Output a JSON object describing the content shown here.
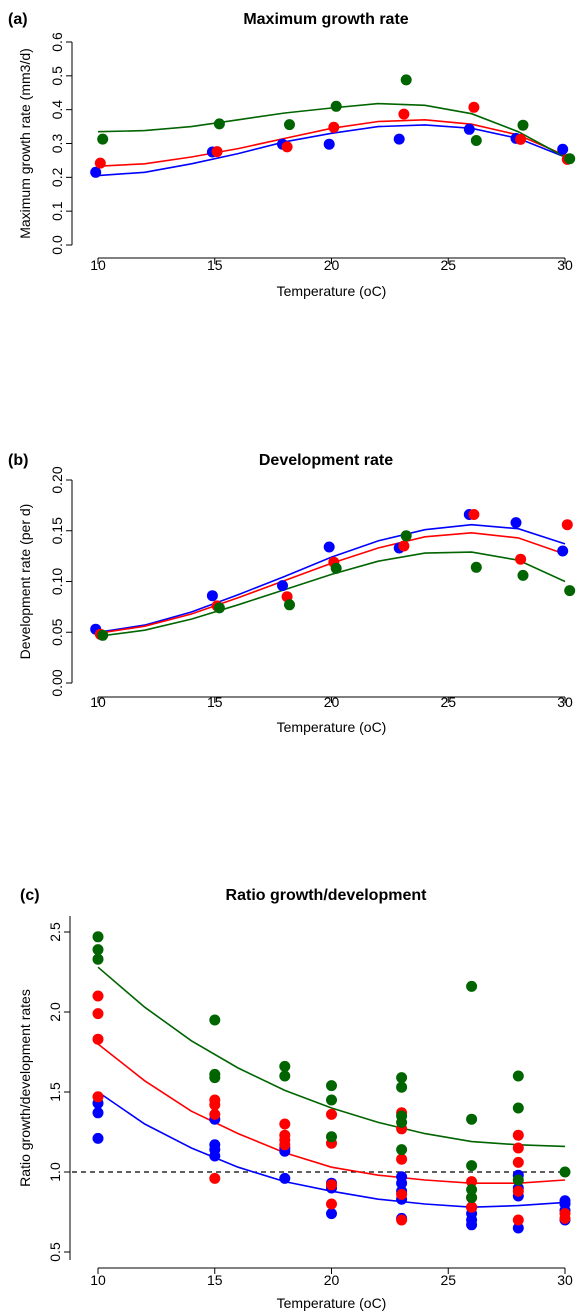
{
  "colors": {
    "blue": "#0000ff",
    "red": "#ff0000",
    "green": "#006400",
    "axis": "#000000"
  },
  "chart_data": [
    {
      "panel": "(a)",
      "type": "scatter",
      "title": "Maximum growth rate",
      "xlabel": "Temperature (oC)",
      "ylabel": "Maximum growth rate (mm3/d)",
      "xlim": [
        10,
        30
      ],
      "ylim": [
        0,
        0.6
      ],
      "xticks": [
        "10",
        "15",
        "20",
        "25",
        "30"
      ],
      "yticks": [
        "0.0",
        "0.1",
        "0.2",
        "0.3",
        "0.4",
        "0.5",
        "0.6"
      ],
      "series": [
        {
          "color": "blue",
          "points": [
            [
              9.9,
              0.215
            ],
            [
              14.9,
              0.275
            ],
            [
              17.9,
              0.298
            ],
            [
              19.9,
              0.298
            ],
            [
              22.9,
              0.313
            ],
            [
              25.9,
              0.342
            ],
            [
              27.9,
              0.315
            ],
            [
              29.9,
              0.283
            ]
          ],
          "curve": [
            [
              10,
              0.205
            ],
            [
              12,
              0.215
            ],
            [
              14,
              0.24
            ],
            [
              16,
              0.27
            ],
            [
              18,
              0.305
            ],
            [
              20,
              0.33
            ],
            [
              22,
              0.35
            ],
            [
              24,
              0.355
            ],
            [
              26,
              0.345
            ],
            [
              28,
              0.315
            ],
            [
              30,
              0.26
            ]
          ]
        },
        {
          "color": "red",
          "points": [
            [
              10.1,
              0.242
            ],
            [
              15.1,
              0.276
            ],
            [
              18.1,
              0.29
            ],
            [
              20.1,
              0.348
            ],
            [
              23.1,
              0.387
            ],
            [
              26.1,
              0.407
            ],
            [
              28.1,
              0.312
            ],
            [
              30.1,
              0.253
            ]
          ],
          "curve": [
            [
              10,
              0.233
            ],
            [
              12,
              0.24
            ],
            [
              14,
              0.26
            ],
            [
              16,
              0.285
            ],
            [
              18,
              0.315
            ],
            [
              20,
              0.345
            ],
            [
              22,
              0.365
            ],
            [
              24,
              0.37
            ],
            [
              26,
              0.357
            ],
            [
              28,
              0.325
            ],
            [
              30,
              0.265
            ]
          ]
        },
        {
          "color": "green",
          "points": [
            [
              10.2,
              0.313
            ],
            [
              15.2,
              0.358
            ],
            [
              18.2,
              0.356
            ],
            [
              20.2,
              0.41
            ],
            [
              23.2,
              0.488
            ],
            [
              26.2,
              0.309
            ],
            [
              28.2,
              0.354
            ],
            [
              30.2,
              0.255
            ]
          ],
          "curve": [
            [
              10,
              0.335
            ],
            [
              12,
              0.338
            ],
            [
              14,
              0.35
            ],
            [
              16,
              0.37
            ],
            [
              18,
              0.39
            ],
            [
              20,
              0.405
            ],
            [
              22,
              0.418
            ],
            [
              24,
              0.413
            ],
            [
              26,
              0.388
            ],
            [
              28,
              0.335
            ],
            [
              30,
              0.26
            ]
          ]
        }
      ]
    },
    {
      "panel": "(b)",
      "type": "scatter",
      "title": "Development rate",
      "xlabel": "Temperature (oC)",
      "ylabel": "Development rate (per d)",
      "xlim": [
        10,
        30
      ],
      "ylim": [
        0,
        0.2
      ],
      "xticks": [
        "10",
        "15",
        "20",
        "25",
        "30"
      ],
      "yticks": [
        "0.00",
        "0.05",
        "0.10",
        "0.15",
        "0.20"
      ],
      "series": [
        {
          "color": "blue",
          "points": [
            [
              9.9,
              0.053
            ],
            [
              14.9,
              0.086
            ],
            [
              17.9,
              0.096
            ],
            [
              19.9,
              0.134
            ],
            [
              22.9,
              0.133
            ],
            [
              25.9,
              0.166
            ],
            [
              27.9,
              0.158
            ],
            [
              29.9,
              0.13
            ]
          ],
          "curve": [
            [
              10,
              0.05
            ],
            [
              12,
              0.057
            ],
            [
              14,
              0.07
            ],
            [
              16,
              0.087
            ],
            [
              18,
              0.105
            ],
            [
              20,
              0.124
            ],
            [
              22,
              0.14
            ],
            [
              24,
              0.151
            ],
            [
              26,
              0.156
            ],
            [
              28,
              0.152
            ],
            [
              30,
              0.137
            ]
          ]
        },
        {
          "color": "red",
          "points": [
            [
              10.1,
              0.048
            ],
            [
              15.1,
              0.076
            ],
            [
              18.1,
              0.085
            ],
            [
              20.1,
              0.119
            ],
            [
              23.1,
              0.135
            ],
            [
              26.1,
              0.166
            ],
            [
              28.1,
              0.122
            ],
            [
              30.1,
              0.156
            ]
          ],
          "curve": [
            [
              10,
              0.049
            ],
            [
              12,
              0.056
            ],
            [
              14,
              0.068
            ],
            [
              16,
              0.084
            ],
            [
              18,
              0.101
            ],
            [
              20,
              0.118
            ],
            [
              22,
              0.133
            ],
            [
              24,
              0.144
            ],
            [
              26,
              0.148
            ],
            [
              28,
              0.143
            ],
            [
              30,
              0.127
            ]
          ]
        },
        {
          "color": "green",
          "points": [
            [
              10.2,
              0.047
            ],
            [
              15.2,
              0.074
            ],
            [
              18.2,
              0.077
            ],
            [
              20.2,
              0.113
            ],
            [
              23.2,
              0.145
            ],
            [
              26.2,
              0.114
            ],
            [
              28.2,
              0.106
            ],
            [
              30.2,
              0.091
            ]
          ],
          "curve": [
            [
              10,
              0.046
            ],
            [
              12,
              0.052
            ],
            [
              14,
              0.063
            ],
            [
              16,
              0.077
            ],
            [
              18,
              0.092
            ],
            [
              20,
              0.107
            ],
            [
              22,
              0.12
            ],
            [
              24,
              0.128
            ],
            [
              26,
              0.129
            ],
            [
              28,
              0.121
            ],
            [
              30,
              0.1
            ]
          ]
        }
      ]
    },
    {
      "panel": "(c)",
      "type": "scatter",
      "title": "Ratio growth/development",
      "xlabel": "Temperature (oC)",
      "ylabel": "Ratio growth/development rates",
      "xlim": [
        10,
        30
      ],
      "ylim": [
        0.45,
        2.6
      ],
      "xticks": [
        "10",
        "15",
        "20",
        "25",
        "30"
      ],
      "yticks": [
        "0.5",
        "1.0",
        "1.5",
        "2.0",
        "2.5"
      ],
      "reference_line": 1.0,
      "series": [
        {
          "color": "blue",
          "points": [
            [
              10,
              1.43
            ],
            [
              10,
              1.37
            ],
            [
              10,
              1.21
            ],
            [
              15,
              1.17
            ],
            [
              15,
              1.14
            ],
            [
              15,
              1.1
            ],
            [
              15,
              1.33
            ],
            [
              18,
              1.15
            ],
            [
              18,
              1.13
            ],
            [
              18,
              0.96
            ],
            [
              20,
              0.93
            ],
            [
              20,
              0.9
            ],
            [
              20,
              0.74
            ],
            [
              23,
              0.97
            ],
            [
              23,
              0.93
            ],
            [
              23,
              0.88
            ],
            [
              23,
              0.83
            ],
            [
              23,
              0.71
            ],
            [
              26,
              0.78
            ],
            [
              26,
              0.74
            ],
            [
              26,
              0.7
            ],
            [
              26,
              0.67
            ],
            [
              28,
              0.98
            ],
            [
              28,
              0.9
            ],
            [
              28,
              0.85
            ],
            [
              28,
              0.65
            ],
            [
              30,
              0.82
            ],
            [
              30,
              0.8
            ],
            [
              30,
              0.76
            ],
            [
              30,
              0.7
            ]
          ],
          "curve": [
            [
              10,
              1.5
            ],
            [
              12,
              1.3
            ],
            [
              14,
              1.15
            ],
            [
              16,
              1.03
            ],
            [
              18,
              0.94
            ],
            [
              20,
              0.88
            ],
            [
              22,
              0.83
            ],
            [
              24,
              0.8
            ],
            [
              26,
              0.78
            ],
            [
              28,
              0.79
            ],
            [
              30,
              0.81
            ]
          ]
        },
        {
          "color": "red",
          "points": [
            [
              10,
              2.1
            ],
            [
              10,
              1.99
            ],
            [
              10,
              1.83
            ],
            [
              10,
              1.47
            ],
            [
              15,
              1.45
            ],
            [
              15,
              1.42
            ],
            [
              15,
              1.36
            ],
            [
              15,
              0.96
            ],
            [
              18,
              1.3
            ],
            [
              18,
              1.23
            ],
            [
              18,
              1.2
            ],
            [
              18,
              1.17
            ],
            [
              20,
              1.36
            ],
            [
              20,
              1.18
            ],
            [
              20,
              0.92
            ],
            [
              20,
              0.8
            ],
            [
              23,
              1.37
            ],
            [
              23,
              1.27
            ],
            [
              23,
              1.08
            ],
            [
              23,
              0.86
            ],
            [
              23,
              0.7
            ],
            [
              26,
              0.94
            ],
            [
              26,
              0.84
            ],
            [
              26,
              0.78
            ],
            [
              28,
              1.23
            ],
            [
              28,
              1.15
            ],
            [
              28,
              1.06
            ],
            [
              28,
              0.88
            ],
            [
              28,
              0.7
            ],
            [
              30,
              0.74
            ],
            [
              30,
              0.71
            ]
          ],
          "curve": [
            [
              10,
              1.8
            ],
            [
              12,
              1.57
            ],
            [
              14,
              1.38
            ],
            [
              16,
              1.24
            ],
            [
              18,
              1.12
            ],
            [
              20,
              1.03
            ],
            [
              22,
              0.98
            ],
            [
              24,
              0.95
            ],
            [
              26,
              0.93
            ],
            [
              28,
              0.93
            ],
            [
              30,
              0.95
            ]
          ]
        },
        {
          "color": "green",
          "points": [
            [
              10,
              2.47
            ],
            [
              10,
              2.39
            ],
            [
              10,
              2.33
            ],
            [
              15,
              1.95
            ],
            [
              15,
              1.61
            ],
            [
              15,
              1.59
            ],
            [
              18,
              1.66
            ],
            [
              18,
              1.6
            ],
            [
              20,
              1.54
            ],
            [
              20,
              1.45
            ],
            [
              20,
              1.22
            ],
            [
              23,
              1.59
            ],
            [
              23,
              1.53
            ],
            [
              23,
              1.35
            ],
            [
              23,
              1.31
            ],
            [
              23,
              1.14
            ],
            [
              26,
              2.16
            ],
            [
              26,
              1.33
            ],
            [
              26,
              1.04
            ],
            [
              26,
              0.89
            ],
            [
              26,
              0.84
            ],
            [
              28,
              1.6
            ],
            [
              28,
              1.4
            ],
            [
              28,
              0.95
            ],
            [
              30,
              1.0
            ]
          ],
          "curve": [
            [
              10,
              2.28
            ],
            [
              12,
              2.03
            ],
            [
              14,
              1.82
            ],
            [
              16,
              1.65
            ],
            [
              18,
              1.51
            ],
            [
              20,
              1.4
            ],
            [
              22,
              1.31
            ],
            [
              24,
              1.24
            ],
            [
              26,
              1.19
            ],
            [
              28,
              1.17
            ],
            [
              30,
              1.16
            ]
          ]
        }
      ]
    }
  ]
}
